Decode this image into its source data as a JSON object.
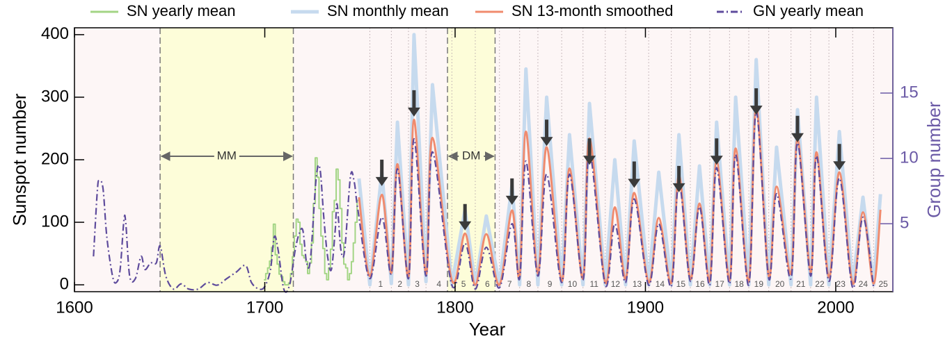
{
  "chart_data": {
    "type": "line",
    "x_label": "Year",
    "y_label": "Sunspot number",
    "y2_label": "Group number",
    "xlim": [
      1600,
      2030
    ],
    "ylim": [
      -11,
      411
    ],
    "y2lim": [
      -0.2,
      20
    ],
    "xticks": [
      1600,
      1700,
      1800,
      1900,
      2000
    ],
    "yticks": [
      0,
      100,
      200,
      300,
      400
    ],
    "y2ticks": [
      5,
      10,
      15
    ],
    "grid": false,
    "background": "#fdf6f6",
    "axis2_color": "#6b5aa6",
    "series": [
      {
        "name": "SN yearly mean",
        "color": "#a3d585",
        "drawstyle": "steps",
        "x": [
          1700,
          1701,
          1702,
          1703,
          1704,
          1705,
          1706,
          1707,
          1708,
          1709,
          1710,
          1711,
          1712,
          1713,
          1714,
          1715,
          1716,
          1717,
          1718,
          1719,
          1720,
          1721,
          1722,
          1723,
          1724,
          1725,
          1726,
          1727,
          1728,
          1729,
          1730,
          1731,
          1732,
          1733,
          1734,
          1735,
          1736,
          1737,
          1738,
          1739,
          1740,
          1741,
          1742,
          1743,
          1744,
          1745,
          1746,
          1747,
          1748,
          1749
        ],
        "values": [
          8,
          18,
          27,
          38,
          60,
          97,
          48,
          33,
          17,
          13,
          5,
          0,
          0,
          3,
          18,
          45,
          78,
          105,
          100,
          65,
          47,
          43,
          37,
          18,
          35,
          67,
          130,
          203,
          172,
          122,
          78,
          58,
          18,
          8,
          27,
          57,
          117,
          135,
          185,
          168,
          122,
          67,
          33,
          27,
          8,
          18,
          37,
          67,
          100,
          135
        ]
      },
      {
        "name": "SN monthly mean",
        "color": "#c6daee",
        "drawstyle": "band",
        "x": [
          1749.5,
          1755.2,
          1761.5,
          1766.5,
          1769.7,
          1775.5,
          1778.4,
          1784.7,
          1788.1,
          1798.3,
          1805.2,
          1810.6,
          1816.4,
          1823.3,
          1829.9,
          1833.9,
          1837.2,
          1843.5,
          1848.1,
          1856.0,
          1860.1,
          1867.2,
          1870.6,
          1878.9,
          1883.9,
          1889.6,
          1894.1,
          1901.7,
          1907.0,
          1913.6,
          1917.6,
          1923.6,
          1928.4,
          1933.8,
          1937.4,
          1944.2,
          1947.4,
          1954.3,
          1958.2,
          1964.8,
          1968.9,
          1976.5,
          1979.9,
          1986.8,
          1989.9,
          1996.4,
          2001.9,
          2008.9,
          2014.3,
          2019.9,
          2023.5
        ],
        "values": [
          170,
          0,
          180,
          2,
          260,
          0,
          400,
          5,
          320,
          0,
          120,
          0,
          110,
          0,
          160,
          0,
          345,
          0,
          300,
          0,
          240,
          0,
          290,
          0,
          200,
          0,
          230,
          0,
          180,
          0,
          240,
          0,
          190,
          0,
          260,
          0,
          300,
          0,
          360,
          0,
          220,
          0,
          280,
          0,
          300,
          0,
          245,
          0,
          140,
          0,
          145
        ]
      },
      {
        "name": "SN 13-month smoothed",
        "color": "#f08b6e",
        "drawstyle": "smooth",
        "x": [
          1749.5,
          1755.2,
          1761.5,
          1766.5,
          1769.7,
          1775.5,
          1778.4,
          1784.7,
          1788.1,
          1798.3,
          1805.2,
          1810.6,
          1816.4,
          1823.3,
          1829.9,
          1833.9,
          1837.2,
          1843.5,
          1848.1,
          1856.0,
          1860.1,
          1867.2,
          1870.6,
          1878.9,
          1883.9,
          1889.6,
          1894.1,
          1901.7,
          1907.0,
          1913.6,
          1917.6,
          1923.6,
          1928.4,
          1933.8,
          1937.4,
          1944.2,
          1947.4,
          1954.3,
          1958.2,
          1964.8,
          1968.9,
          1976.5,
          1979.9,
          1986.8,
          1989.9,
          1996.4,
          2001.9,
          2008.9,
          2014.3,
          2019.9,
          2023.5
        ],
        "values": [
          140,
          14,
          144,
          19,
          193,
          12,
          264,
          17,
          235,
          7,
          82,
          0,
          81,
          0,
          119,
          12,
          245,
          18,
          220,
          6,
          186,
          10,
          234,
          4,
          124,
          9,
          147,
          4,
          107,
          3,
          175,
          9,
          130,
          6,
          198,
          7,
          218,
          5,
          285,
          14,
          157,
          18,
          233,
          20,
          212,
          12,
          180,
          2,
          116,
          2,
          120
        ]
      },
      {
        "name": "GN yearly mean",
        "color": "#5e4b9c",
        "drawstyle": "dashdot",
        "axis": "y2",
        "x": [
          1610,
          1612,
          1613,
          1615,
          1617,
          1620,
          1622,
          1624,
          1626,
          1627,
          1629,
          1632,
          1635,
          1637,
          1640,
          1643,
          1645,
          1648,
          1652,
          1656,
          1660,
          1665,
          1670,
          1675,
          1680,
          1685,
          1690,
          1693,
          1697,
          1700,
          1703,
          1705,
          1707,
          1710,
          1713,
          1716,
          1718,
          1720,
          1722,
          1724,
          1727,
          1729,
          1731,
          1733,
          1735,
          1737,
          1738,
          1740,
          1742,
          1745,
          1747,
          1749,
          1755.2,
          1761.5,
          1766.5,
          1769.7,
          1775.5,
          1778.4,
          1784.7,
          1788.1,
          1798.3,
          1805.2,
          1810.6,
          1816.4,
          1823.3,
          1829.9,
          1833.9,
          1837.2,
          1843.5,
          1848.1,
          1856.0,
          1860.1,
          1867.2,
          1870.6,
          1878.9,
          1883.9,
          1889.6,
          1894.1,
          1901.7,
          1907.0,
          1913.6,
          1917.6,
          1923.6,
          1928.4,
          1933.8,
          1937.4,
          1944.2,
          1947.4,
          1954.3,
          1958.2,
          1964.8,
          1968.9,
          1976.5,
          1979.9,
          1986.8,
          1989.9,
          1996.4,
          2001.9,
          2008.9,
          2014.3,
          2019.9
        ],
        "values": [
          2.5,
          7.5,
          8.3,
          7.7,
          4,
          1,
          0.5,
          1.5,
          5.3,
          5.0,
          1,
          0.8,
          2.5,
          1.5,
          2,
          2,
          3.3,
          1,
          0,
          0.4,
          0,
          0,
          0.5,
          0.3,
          0.8,
          1.3,
          1.8,
          0.5,
          0,
          0.2,
          1.5,
          4,
          3,
          0,
          0.3,
          3,
          4.2,
          4.5,
          2,
          2.3,
          8.5,
          9.2,
          5.5,
          2.5,
          1.5,
          4.5,
          6.5,
          3,
          3,
          8.6,
          8.2,
          6,
          0.8,
          5.5,
          1.2,
          9.2,
          0.8,
          11.5,
          1.0,
          10.5,
          0.3,
          3.5,
          0,
          3.2,
          0.1,
          5.0,
          0.8,
          9.8,
          1.0,
          8.8,
          0.5,
          8.8,
          0.7,
          10.5,
          0.3,
          5.0,
          0.5,
          6.9,
          0.3,
          5.0,
          0.2,
          8.2,
          0.6,
          6.3,
          0.3,
          9.3,
          0.4,
          10.3,
          0.3,
          13.6,
          0.8,
          7.3,
          0.8,
          11.2,
          1.0,
          10.2,
          0.6,
          8.5,
          0.1,
          5.5,
          0.1
        ]
      }
    ],
    "bands": [
      {
        "label": "MM",
        "range": [
          1645,
          1715
        ],
        "color": "#fdfdd9"
      },
      {
        "label": "DM",
        "range": [
          1796,
          1821
        ],
        "color": "#fdfdd9"
      }
    ],
    "cycles": {
      "labels": [
        "1",
        "2",
        "3",
        "4",
        "5",
        "6",
        "7",
        "8",
        "9",
        "10",
        "11",
        "12",
        "13",
        "14",
        "15",
        "16",
        "17",
        "18",
        "19",
        "20",
        "21",
        "22",
        "23",
        "24",
        "25"
      ],
      "starts": [
        1755.2,
        1766.5,
        1775.5,
        1784.7,
        1798.3,
        1810.6,
        1823.3,
        1833.9,
        1843.5,
        1856.0,
        1867.2,
        1878.9,
        1889.6,
        1901.7,
        1913.6,
        1923.6,
        1933.8,
        1944.2,
        1954.3,
        1964.8,
        1976.5,
        1986.8,
        1996.4,
        2008.9,
        2019.9
      ]
    },
    "arrows": {
      "x": [
        1761.5,
        1778.4,
        1805.2,
        1829.9,
        1848.1,
        1870.6,
        1894.1,
        1917.6,
        1937.4,
        1958.2,
        1979.9,
        2001.9
      ],
      "y": [
        158,
        269,
        87,
        128,
        222,
        192,
        155,
        148,
        192,
        272,
        228,
        183
      ]
    }
  }
}
